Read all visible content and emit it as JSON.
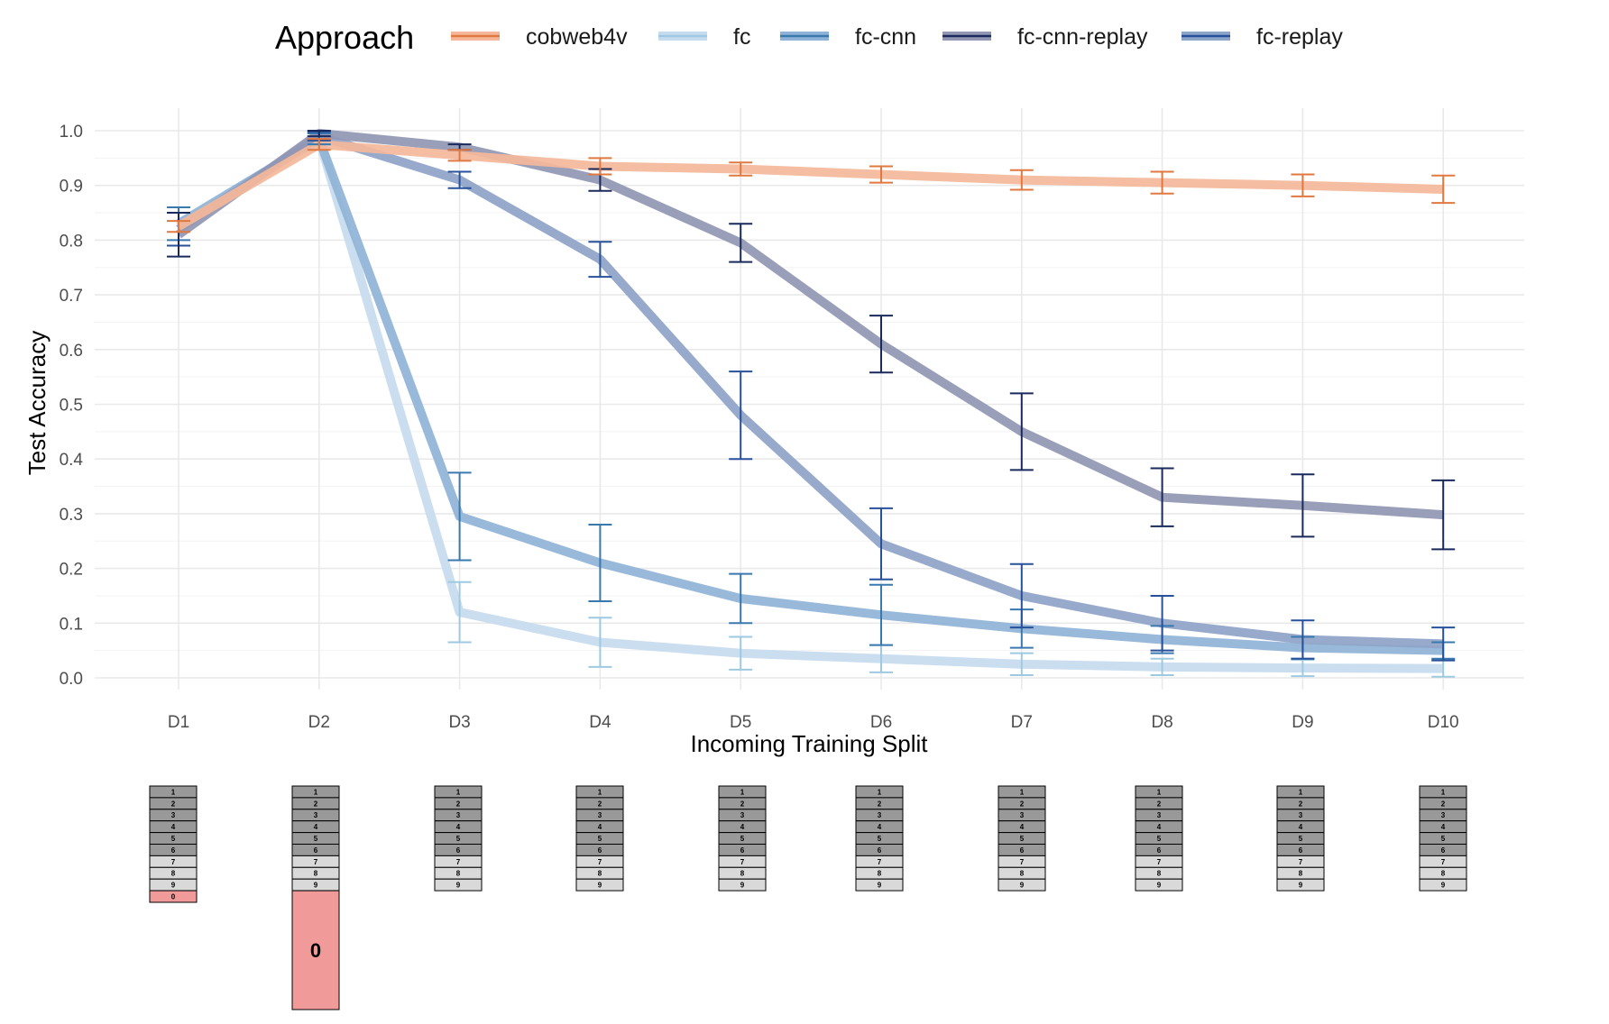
{
  "chart_data": {
    "type": "line",
    "title": "",
    "xlabel": "Incoming Training Split",
    "ylabel": "Test Accuracy",
    "ylim": [
      0,
      1.0
    ],
    "yticks": [
      "0.0",
      "0.1",
      "0.2",
      "0.3",
      "0.4",
      "0.5",
      "0.6",
      "0.7",
      "0.8",
      "0.9",
      "1.0"
    ],
    "categories": [
      "D1",
      "D2",
      "D3",
      "D4",
      "D5",
      "D6",
      "D7",
      "D8",
      "D9",
      "D10"
    ],
    "legend_title": "Approach",
    "legend_position": "top",
    "series": [
      {
        "name": "fc",
        "line_color": "#c6dbef",
        "err_color": "#9ecae1",
        "values": [
          null,
          0.985,
          0.12,
          0.065,
          0.045,
          0.035,
          0.025,
          0.02,
          0.018,
          0.017
        ],
        "err": [
          null,
          0.01,
          0.055,
          0.045,
          0.03,
          0.025,
          0.02,
          0.015,
          0.015,
          0.015
        ]
      },
      {
        "name": "fc-cnn",
        "line_color": "#8fb3d6",
        "err_color": "#3a78b0",
        "values": [
          0.83,
          0.985,
          0.295,
          0.21,
          0.145,
          0.115,
          0.09,
          0.07,
          0.055,
          0.05
        ],
        "err": [
          0.03,
          0.01,
          0.08,
          0.07,
          0.045,
          0.055,
          0.035,
          0.025,
          0.02,
          0.015
        ]
      },
      {
        "name": "fc-replay",
        "line_color": "#8ea3c8",
        "err_color": "#27519a",
        "values": [
          0.82,
          0.99,
          0.91,
          0.765,
          0.48,
          0.245,
          0.15,
          0.1,
          0.07,
          0.062
        ],
        "err": [
          0.03,
          0.008,
          0.015,
          0.032,
          0.08,
          0.065,
          0.058,
          0.05,
          0.035,
          0.03
        ]
      },
      {
        "name": "fc-cnn-replay",
        "line_color": "#9197b3",
        "err_color": "#1a2a5c",
        "values": [
          0.81,
          0.995,
          0.97,
          0.91,
          0.795,
          0.61,
          0.45,
          0.33,
          0.315,
          0.298
        ],
        "err": [
          0.04,
          0.005,
          0.005,
          0.02,
          0.035,
          0.052,
          0.07,
          0.053,
          0.057,
          0.063
        ]
      },
      {
        "name": "cobweb4v",
        "line_color": "#f4b79a",
        "err_color": "#e07840",
        "values": [
          0.825,
          0.975,
          0.955,
          0.935,
          0.93,
          0.92,
          0.91,
          0.905,
          0.9,
          0.893
        ],
        "err": [
          0.01,
          0.01,
          0.01,
          0.015,
          0.012,
          0.015,
          0.018,
          0.02,
          0.02,
          0.025
        ]
      }
    ],
    "legend_order": [
      "cobweb4v",
      "fc",
      "fc-cnn",
      "fc-cnn-replay",
      "fc-replay"
    ]
  },
  "stacks": {
    "cell_labels": [
      "1",
      "2",
      "3",
      "4",
      "5",
      "6",
      "7",
      "8",
      "9"
    ],
    "highlight_label": "0",
    "highlight_color": "#f09a9a",
    "dark_cell_color": "#999999",
    "light_cell_color": "#d9d9d9",
    "columns": [
      {
        "split": "D1",
        "highlight": "small"
      },
      {
        "split": "D2",
        "highlight": "big"
      },
      {
        "split": "D3",
        "highlight": "none"
      },
      {
        "split": "D4",
        "highlight": "none"
      },
      {
        "split": "D5",
        "highlight": "none"
      },
      {
        "split": "D6",
        "highlight": "none"
      },
      {
        "split": "D7",
        "highlight": "none"
      },
      {
        "split": "D8",
        "highlight": "none"
      },
      {
        "split": "D9",
        "highlight": "none"
      },
      {
        "split": "D10",
        "highlight": "none"
      }
    ]
  }
}
